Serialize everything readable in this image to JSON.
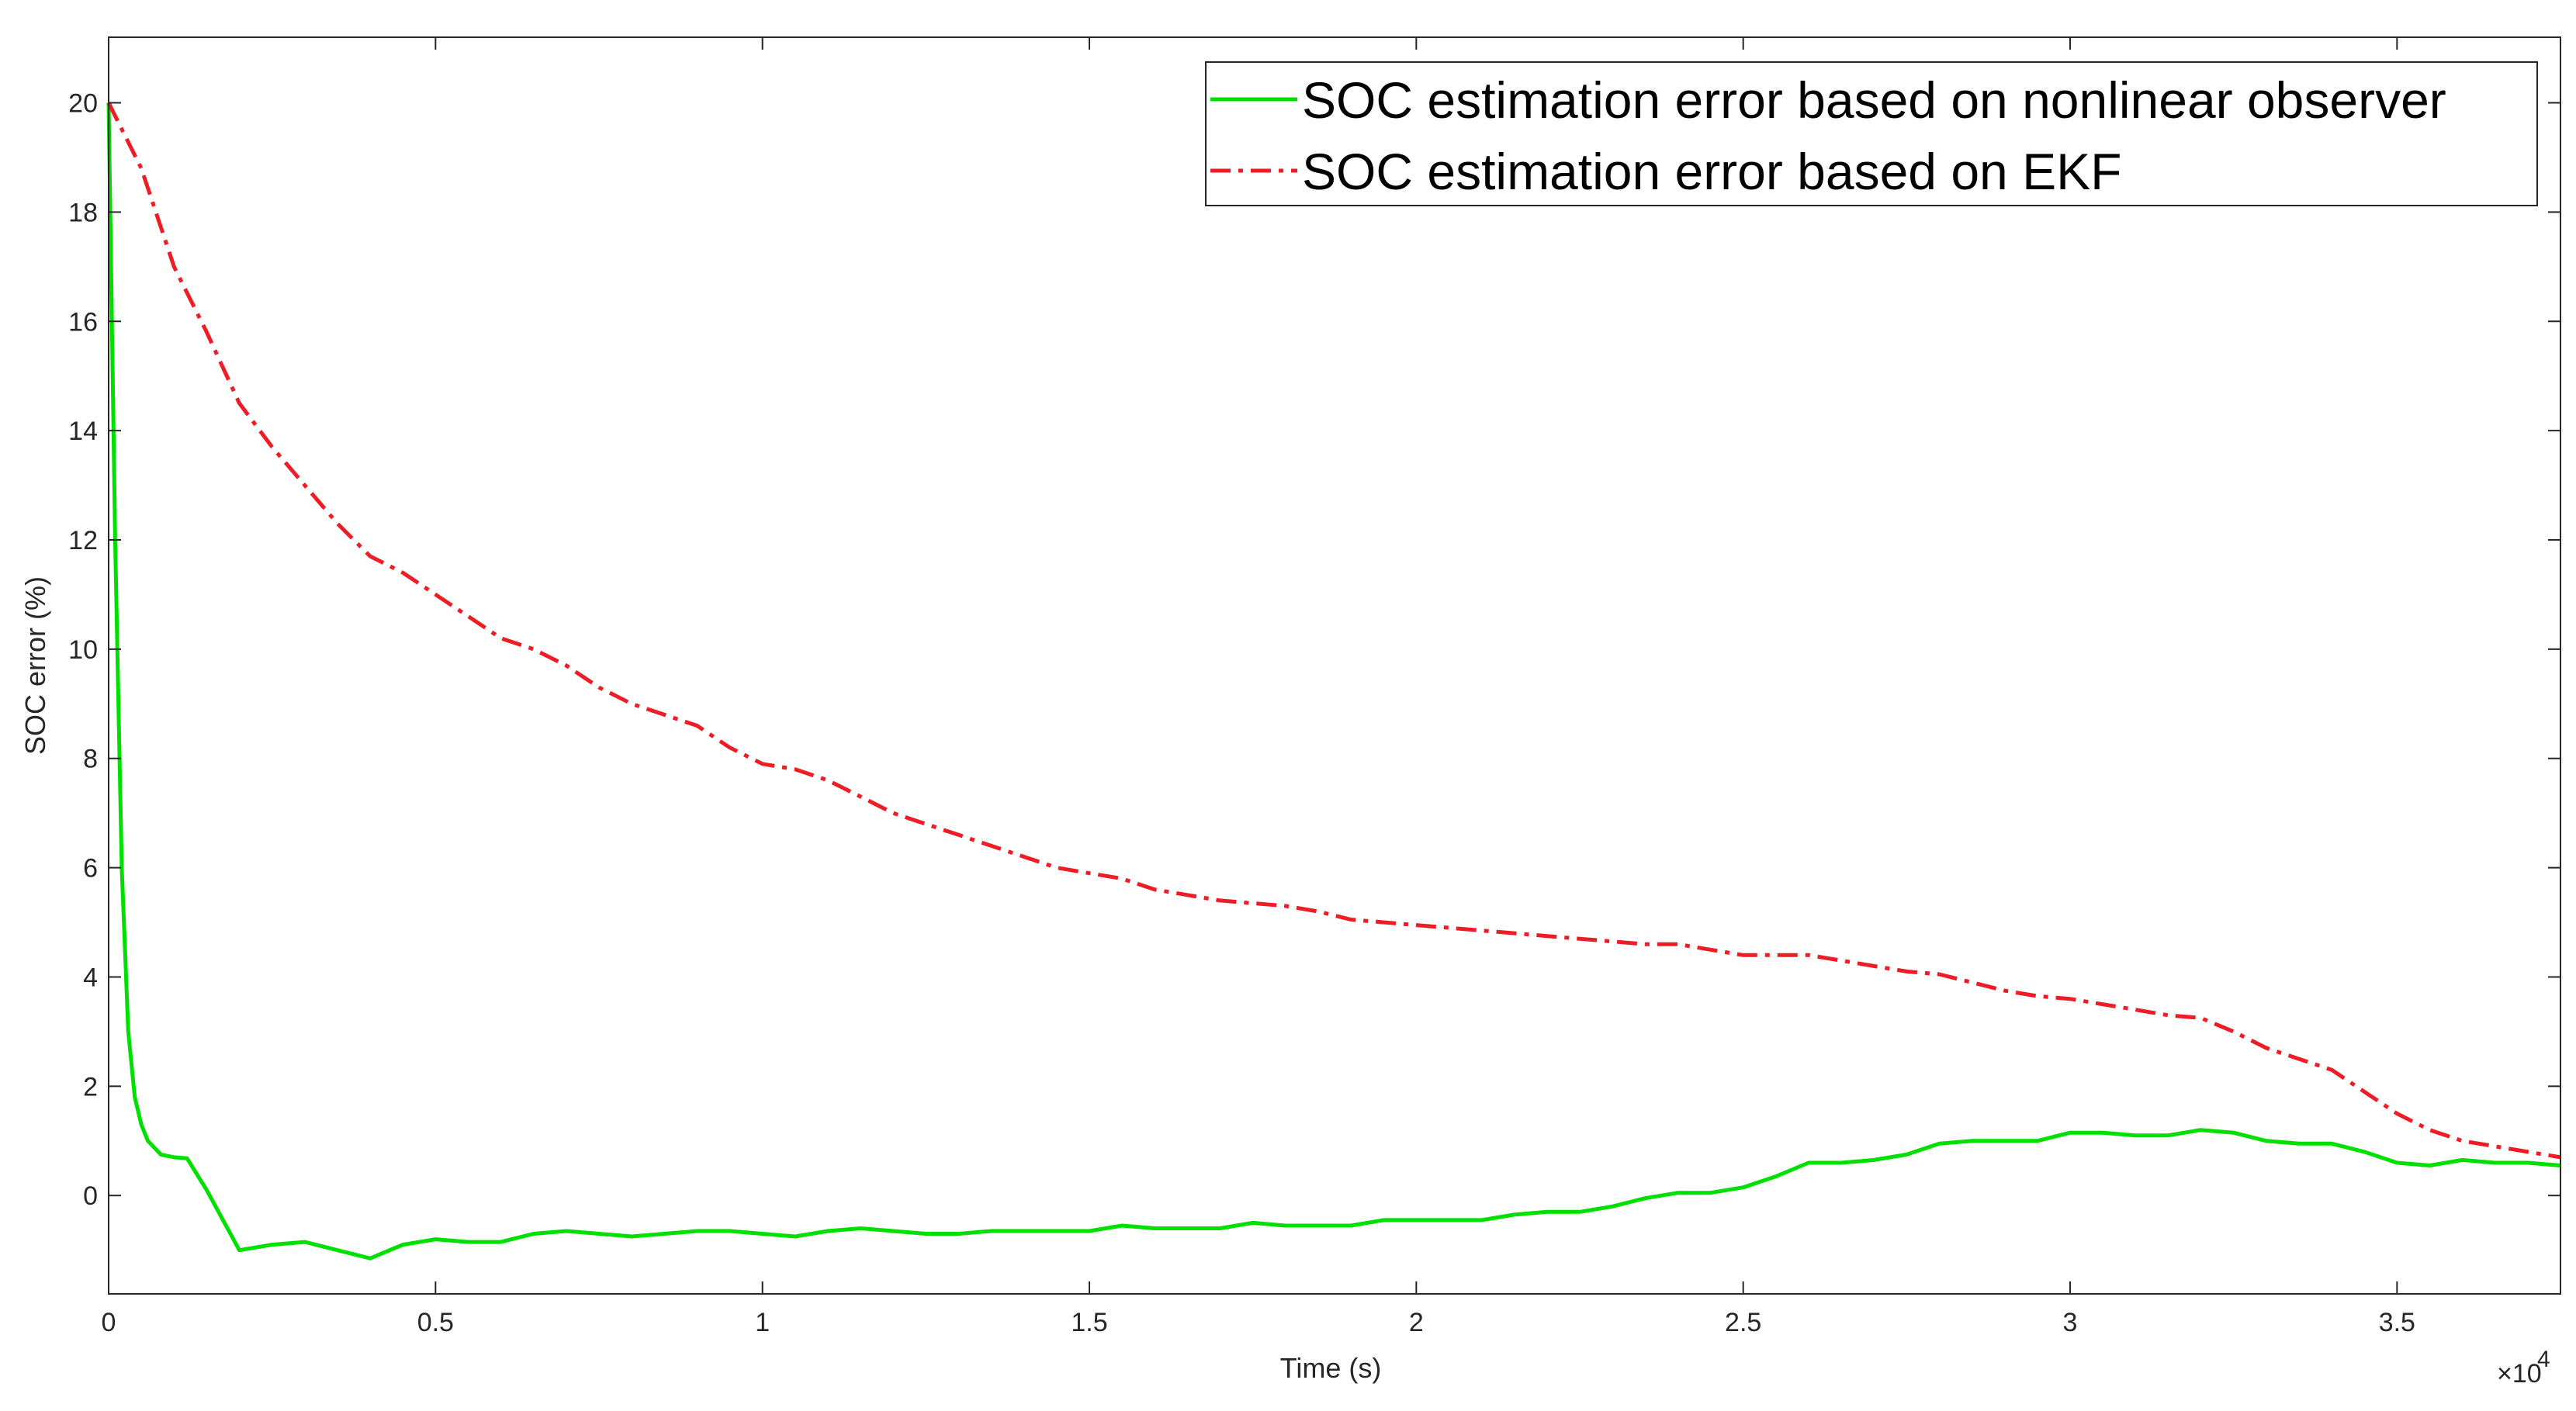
{
  "chart_data": {
    "type": "line",
    "title": "",
    "xlabel": "Time (s)",
    "ylabel": "SOC error (%)",
    "x_exponent_base": "×10",
    "x_exponent_power": "4",
    "xlim": [
      0,
      3.75
    ],
    "ylim": [
      -1.8,
      21.2
    ],
    "xticks": [
      0,
      0.5,
      1,
      1.5,
      2,
      2.5,
      3,
      3.5
    ],
    "xtick_labels": [
      "0",
      "0.5",
      "1",
      "1.5",
      "2",
      "2.5",
      "3",
      "3.5"
    ],
    "yticks": [
      0,
      2,
      4,
      6,
      8,
      10,
      12,
      14,
      16,
      18,
      20
    ],
    "ytick_labels": [
      "0",
      "2",
      "4",
      "6",
      "8",
      "10",
      "12",
      "14",
      "16",
      "18",
      "20"
    ],
    "grid": false,
    "legend_position": "top-right",
    "series": [
      {
        "name": "SOC estimation error based on nonlinear observer",
        "color": "#00e000",
        "line_style": "solid",
        "x": [
          0,
          0.01,
          0.02,
          0.03,
          0.04,
          0.05,
          0.06,
          0.08,
          0.1,
          0.12,
          0.15,
          0.2,
          0.25,
          0.3,
          0.35,
          0.4,
          0.45,
          0.5,
          0.55,
          0.6,
          0.65,
          0.7,
          0.75,
          0.8,
          0.85,
          0.9,
          0.95,
          1.0,
          1.05,
          1.1,
          1.15,
          1.2,
          1.25,
          1.3,
          1.35,
          1.4,
          1.45,
          1.5,
          1.55,
          1.6,
          1.65,
          1.7,
          1.75,
          1.8,
          1.85,
          1.9,
          1.95,
          2.0,
          2.05,
          2.1,
          2.15,
          2.2,
          2.25,
          2.3,
          2.35,
          2.4,
          2.45,
          2.5,
          2.55,
          2.6,
          2.65,
          2.7,
          2.75,
          2.8,
          2.85,
          2.9,
          2.95,
          3.0,
          3.05,
          3.1,
          3.15,
          3.2,
          3.25,
          3.3,
          3.35,
          3.4,
          3.45,
          3.5,
          3.55,
          3.6,
          3.65,
          3.7,
          3.75
        ],
        "values": [
          20,
          12,
          6,
          3,
          1.8,
          1.3,
          1.0,
          0.75,
          0.7,
          0.68,
          0.1,
          -1.0,
          -0.9,
          -0.85,
          -1.0,
          -1.15,
          -0.9,
          -0.8,
          -0.85,
          -0.85,
          -0.7,
          -0.65,
          -0.7,
          -0.75,
          -0.7,
          -0.65,
          -0.65,
          -0.7,
          -0.75,
          -0.65,
          -0.6,
          -0.65,
          -0.7,
          -0.7,
          -0.65,
          -0.65,
          -0.65,
          -0.65,
          -0.55,
          -0.6,
          -0.6,
          -0.6,
          -0.5,
          -0.55,
          -0.55,
          -0.55,
          -0.45,
          -0.45,
          -0.45,
          -0.45,
          -0.35,
          -0.3,
          -0.3,
          -0.2,
          -0.05,
          0.05,
          0.05,
          0.15,
          0.35,
          0.6,
          0.6,
          0.65,
          0.75,
          0.95,
          1.0,
          1.0,
          1.0,
          1.15,
          1.15,
          1.1,
          1.1,
          1.2,
          1.15,
          1.0,
          0.95,
          0.95,
          0.8,
          0.6,
          0.55,
          0.65,
          0.6,
          0.6,
          0.55
        ]
      },
      {
        "name": "SOC estimation error based on EKF",
        "color": "#ee1c25",
        "line_style": "dashdot",
        "x": [
          0,
          0.05,
          0.1,
          0.15,
          0.2,
          0.25,
          0.3,
          0.35,
          0.4,
          0.45,
          0.5,
          0.55,
          0.6,
          0.65,
          0.7,
          0.75,
          0.8,
          0.85,
          0.9,
          0.95,
          1.0,
          1.05,
          1.1,
          1.15,
          1.2,
          1.25,
          1.3,
          1.35,
          1.4,
          1.45,
          1.5,
          1.55,
          1.6,
          1.65,
          1.7,
          1.75,
          1.8,
          1.85,
          1.9,
          1.95,
          2.0,
          2.05,
          2.1,
          2.15,
          2.2,
          2.25,
          2.3,
          2.35,
          2.4,
          2.45,
          2.5,
          2.55,
          2.6,
          2.65,
          2.7,
          2.75,
          2.8,
          2.85,
          2.9,
          2.95,
          3.0,
          3.05,
          3.1,
          3.15,
          3.2,
          3.25,
          3.3,
          3.35,
          3.4,
          3.45,
          3.5,
          3.55,
          3.6,
          3.65,
          3.7,
          3.75
        ],
        "values": [
          20,
          18.8,
          17.0,
          15.8,
          14.5,
          13.7,
          13.0,
          12.3,
          11.7,
          11.4,
          11.0,
          10.6,
          10.2,
          10.0,
          9.7,
          9.3,
          9.0,
          8.8,
          8.6,
          8.2,
          7.9,
          7.8,
          7.6,
          7.3,
          7.0,
          6.8,
          6.6,
          6.4,
          6.2,
          6.0,
          5.9,
          5.8,
          5.6,
          5.5,
          5.4,
          5.35,
          5.3,
          5.2,
          5.05,
          5.0,
          4.95,
          4.9,
          4.85,
          4.8,
          4.75,
          4.7,
          4.65,
          4.6,
          4.6,
          4.5,
          4.4,
          4.4,
          4.4,
          4.3,
          4.2,
          4.1,
          4.05,
          3.9,
          3.75,
          3.65,
          3.6,
          3.5,
          3.4,
          3.3,
          3.25,
          3.0,
          2.7,
          2.5,
          2.3,
          1.9,
          1.5,
          1.2,
          1.0,
          0.9,
          0.8,
          0.7
        ]
      }
    ]
  }
}
